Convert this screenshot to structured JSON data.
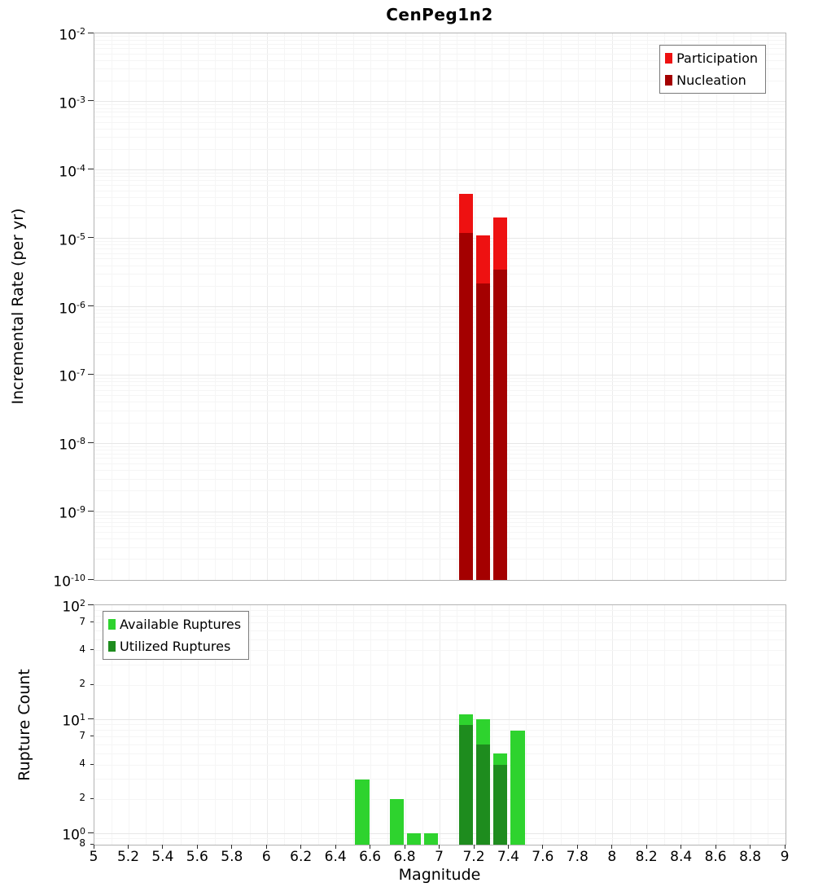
{
  "title": "CenPeg1n2",
  "axes": {
    "x_label": "Magnitude",
    "x_ticks": [
      {
        "v": 5,
        "label": "5"
      },
      {
        "v": 5.2,
        "label": "5.2"
      },
      {
        "v": 5.4,
        "label": "5.4"
      },
      {
        "v": 5.6,
        "label": "5.6"
      },
      {
        "v": 5.8,
        "label": "5.8"
      },
      {
        "v": 6,
        "label": "6"
      },
      {
        "v": 6.2,
        "label": "6.2"
      },
      {
        "v": 6.4,
        "label": "6.4"
      },
      {
        "v": 6.6,
        "label": "6.6"
      },
      {
        "v": 6.8,
        "label": "6.8"
      },
      {
        "v": 7,
        "label": "7"
      },
      {
        "v": 7.2,
        "label": "7.2"
      },
      {
        "v": 7.4,
        "label": "7.4"
      },
      {
        "v": 7.6,
        "label": "7.6"
      },
      {
        "v": 7.8,
        "label": "7.8"
      },
      {
        "v": 8,
        "label": "8"
      },
      {
        "v": 8.2,
        "label": "8.2"
      },
      {
        "v": 8.4,
        "label": "8.4"
      },
      {
        "v": 8.6,
        "label": "8.6"
      },
      {
        "v": 8.8,
        "label": "8.8"
      },
      {
        "v": 9,
        "label": "9"
      }
    ]
  },
  "chart_data": [
    {
      "type": "bar",
      "title": "CenPeg1n2",
      "ylabel": "Incremental Rate (per yr)",
      "xlabel": "Magnitude",
      "yscale": "log",
      "ylim": [
        1e-10,
        0.01
      ],
      "xlim": [
        5,
        9
      ],
      "bin_width": 0.1,
      "grid": true,
      "legend_position": "top-right",
      "y_ticks": [
        {
          "v": 0.01,
          "exp": "-2"
        },
        {
          "v": 0.001,
          "exp": "-3"
        },
        {
          "v": 0.0001,
          "exp": "-4"
        },
        {
          "v": 1e-05,
          "exp": "-5"
        },
        {
          "v": 1e-06,
          "exp": "-6"
        },
        {
          "v": 1e-07,
          "exp": "-7"
        },
        {
          "v": 1e-08,
          "exp": "-8"
        },
        {
          "v": 1e-09,
          "exp": "-9"
        },
        {
          "v": 1e-10,
          "exp": "-10"
        }
      ],
      "series": [
        {
          "name": "Participation",
          "color": "#ee1111",
          "points": [
            {
              "x": 7.15,
              "y": 4.5e-05
            },
            {
              "x": 7.25,
              "y": 1.1e-05
            },
            {
              "x": 7.35,
              "y": 2e-05
            }
          ]
        },
        {
          "name": "Nucleation",
          "color": "#a40000",
          "points": [
            {
              "x": 7.15,
              "y": 1.2e-05
            },
            {
              "x": 7.25,
              "y": 2.2e-06
            },
            {
              "x": 7.35,
              "y": 3.5e-06
            }
          ]
        }
      ]
    },
    {
      "type": "bar",
      "ylabel": "Rupture Count",
      "xlabel": "Magnitude",
      "yscale": "log",
      "ylim": [
        0.8,
        100
      ],
      "xlim": [
        5,
        9
      ],
      "bin_width": 0.1,
      "grid": true,
      "legend_position": "top-left",
      "y_ticks": [
        {
          "v": 100,
          "exp": "2"
        },
        {
          "v": 70,
          "label": "7",
          "minor": true
        },
        {
          "v": 40,
          "label": "4",
          "minor": true
        },
        {
          "v": 20,
          "label": "2",
          "minor": true
        },
        {
          "v": 10,
          "exp": "1"
        },
        {
          "v": 7,
          "label": "7",
          "minor": true
        },
        {
          "v": 4,
          "label": "4",
          "minor": true
        },
        {
          "v": 2,
          "label": "2",
          "minor": true
        },
        {
          "v": 1,
          "exp": "0"
        },
        {
          "v": 0.8,
          "label": "8",
          "minor": true
        }
      ],
      "series": [
        {
          "name": "Available Ruptures",
          "color": "#2ed32e",
          "points": [
            {
              "x": 6.55,
              "y": 3
            },
            {
              "x": 6.75,
              "y": 2
            },
            {
              "x": 6.85,
              "y": 1
            },
            {
              "x": 6.95,
              "y": 1
            },
            {
              "x": 7.15,
              "y": 11
            },
            {
              "x": 7.25,
              "y": 10
            },
            {
              "x": 7.35,
              "y": 5
            },
            {
              "x": 7.45,
              "y": 8
            }
          ]
        },
        {
          "name": "Utilized Ruptures",
          "color": "#1e8c1e",
          "points": [
            {
              "x": 7.15,
              "y": 9
            },
            {
              "x": 7.25,
              "y": 6
            },
            {
              "x": 7.35,
              "y": 4
            }
          ]
        }
      ]
    }
  ]
}
